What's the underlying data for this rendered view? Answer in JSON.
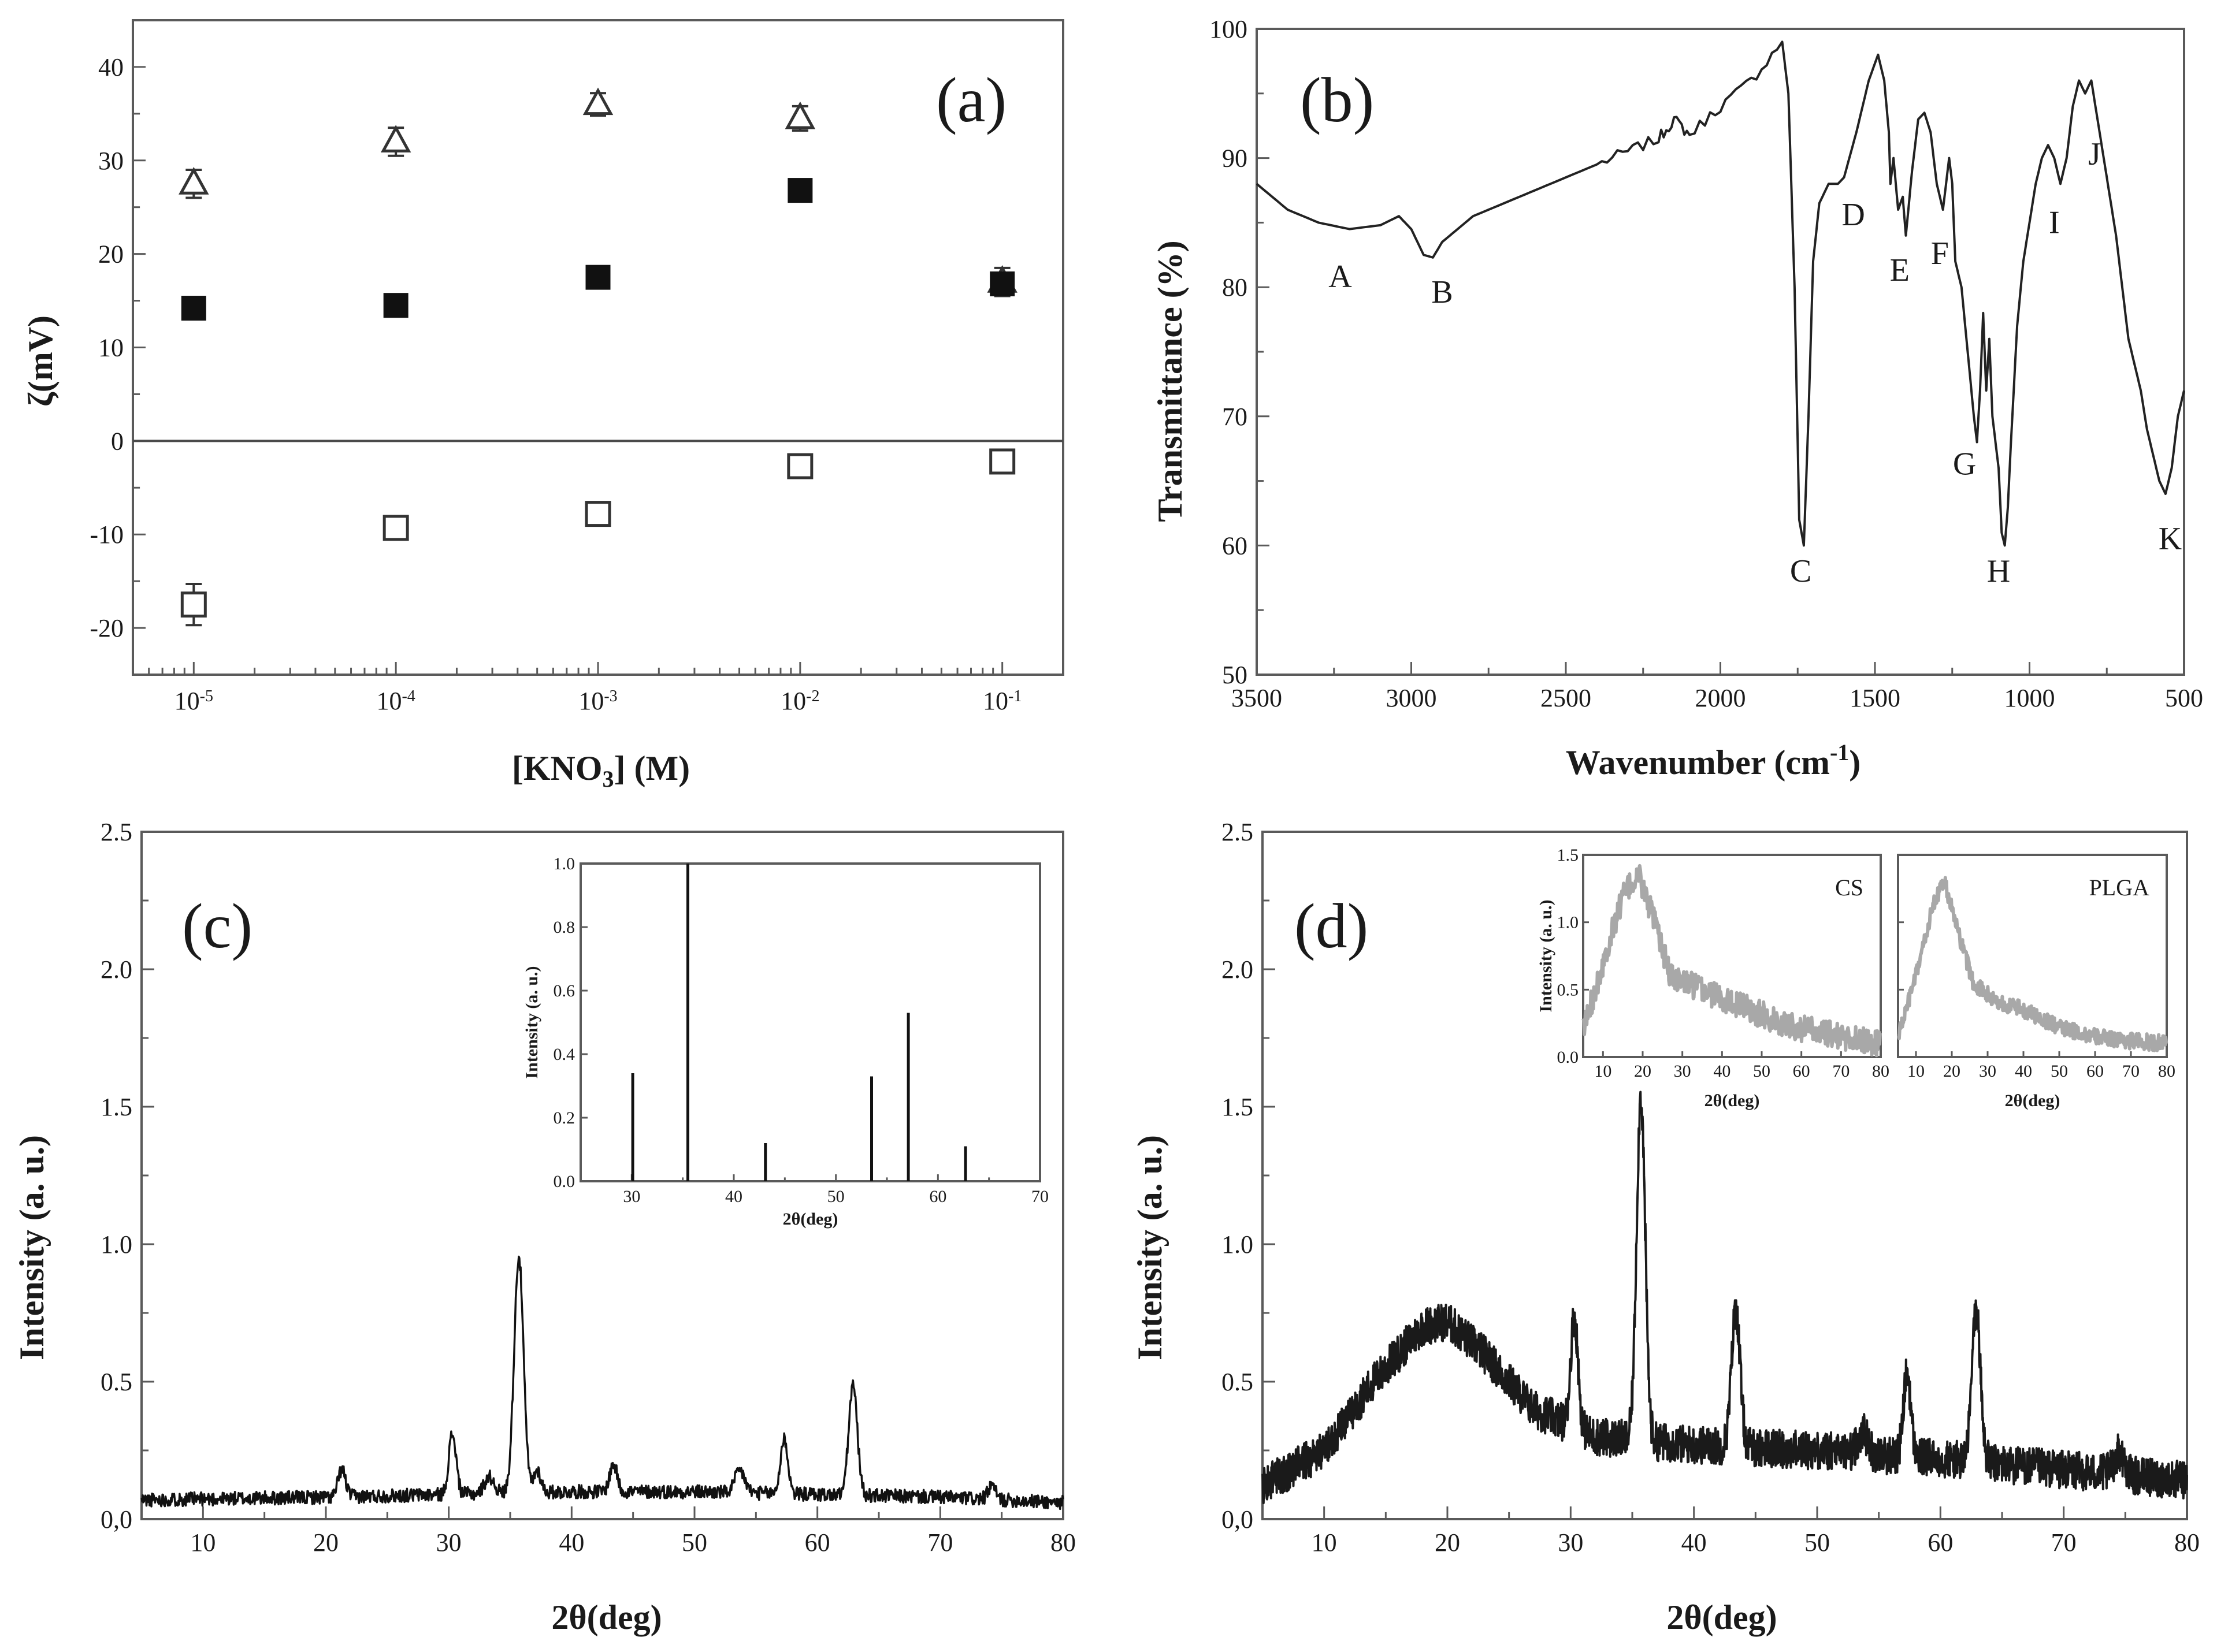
{
  "chart_data": [
    {
      "id": "a",
      "type": "scatter",
      "panel_label": "(a)",
      "xlabel": "[KNO3] (M)",
      "ylabel": "ζ(mV)",
      "x_scale": "log",
      "xlim": [
        5e-06,
        0.2
      ],
      "ylim": [
        -25,
        45
      ],
      "x_ticks": [
        1e-05,
        0.0001,
        0.001,
        0.01,
        0.1
      ],
      "x_tick_labels": [
        "10-5",
        "10-4",
        "10-3",
        "10-2",
        "10-1"
      ],
      "y_ticks": [
        -20,
        -10,
        0,
        10,
        20,
        30,
        40
      ],
      "y_tick_labels": [
        "-20",
        "-10",
        "0",
        "10",
        "20",
        "30",
        "40"
      ],
      "zero_line": true,
      "series": [
        {
          "marker": "open-triangle",
          "x": [
            1e-05,
            0.0001,
            0.001,
            0.01,
            0.1
          ],
          "y": [
            27.5,
            32,
            36,
            34.5,
            17
          ],
          "err": [
            1.5,
            1.5,
            1.2,
            1.3,
            1.5
          ]
        },
        {
          "marker": "filled-square",
          "x": [
            1e-05,
            0.0001,
            0.001,
            0.01,
            0.1
          ],
          "y": [
            14.2,
            14.5,
            17.5,
            26.8,
            16.8
          ],
          "err": [
            0.7,
            0.7,
            0.7,
            0.7,
            0.7
          ]
        },
        {
          "marker": "open-square",
          "x": [
            1e-05,
            0.0001,
            0.001,
            0.01,
            0.1
          ],
          "y": [
            -17.5,
            -9.3,
            -7.8,
            -2.7,
            -2.2
          ],
          "err": [
            2.2,
            1.0,
            1.0,
            0.8,
            0.8
          ]
        }
      ]
    },
    {
      "id": "b",
      "type": "line",
      "panel_label": "(b)",
      "xlabel": "Wavenumber (cm-1)",
      "ylabel": "Transmittance (%)",
      "xlim": [
        3500,
        500
      ],
      "ylim": [
        50,
        100
      ],
      "x_ticks": [
        3500,
        3000,
        2500,
        2000,
        1500,
        1000,
        500
      ],
      "y_ticks": [
        50,
        60,
        70,
        80,
        90,
        100
      ],
      "x": [
        3500,
        3400,
        3300,
        3200,
        3100,
        3040,
        3000,
        2960,
        2930,
        2900,
        2850,
        2800,
        2700,
        2600,
        2500,
        2400,
        2300,
        2200,
        2150,
        2100,
        2000,
        1900,
        1800,
        1780,
        1760,
        1745,
        1730,
        1715,
        1700,
        1680,
        1650,
        1620,
        1600,
        1560,
        1520,
        1490,
        1470,
        1455,
        1450,
        1440,
        1425,
        1410,
        1400,
        1380,
        1360,
        1340,
        1320,
        1300,
        1280,
        1260,
        1250,
        1240,
        1220,
        1200,
        1180,
        1170,
        1160,
        1150,
        1140,
        1130,
        1120,
        1110,
        1100,
        1090,
        1080,
        1070,
        1060,
        1040,
        1020,
        1000,
        980,
        960,
        940,
        920,
        900,
        880,
        860,
        840,
        820,
        800,
        780,
        760,
        740,
        720,
        700,
        680,
        660,
        640,
        620,
        600,
        580,
        560,
        540,
        520,
        500
      ],
      "y": [
        88,
        86,
        85,
        84.5,
        84.8,
        85.5,
        84.5,
        82.5,
        82.3,
        83.5,
        84.5,
        85.5,
        86.5,
        87.5,
        88.5,
        89.5,
        90.5,
        91.5,
        93,
        91.8,
        94,
        96,
        99,
        95,
        80,
        62,
        60,
        70,
        82,
        86.5,
        88,
        88,
        88.5,
        92,
        96,
        98,
        96,
        92,
        88,
        90,
        86,
        87,
        84,
        89,
        93,
        93.5,
        92,
        88,
        86,
        90,
        88,
        82,
        80,
        75,
        70,
        68,
        72,
        78,
        72,
        76,
        70,
        68,
        66,
        61,
        60,
        63,
        68,
        77,
        82,
        85,
        88,
        90,
        91,
        90,
        88,
        90,
        94,
        96,
        95,
        96,
        93,
        90,
        87,
        84,
        80,
        76,
        74,
        72,
        69,
        67,
        65,
        64,
        66,
        70,
        72
      ],
      "annotations": [
        {
          "text": "A",
          "x": 3230,
          "y": 80
        },
        {
          "text": "B",
          "x": 2900,
          "y": 78.8
        },
        {
          "text": "C",
          "x": 1740,
          "y": 57.2
        },
        {
          "text": "D",
          "x": 1570,
          "y": 84.8
        },
        {
          "text": "E",
          "x": 1420,
          "y": 80.5
        },
        {
          "text": "F",
          "x": 1290,
          "y": 81.8
        },
        {
          "text": "G",
          "x": 1210,
          "y": 65.5
        },
        {
          "text": "H",
          "x": 1100,
          "y": 57.2
        },
        {
          "text": "I",
          "x": 920,
          "y": 84.2
        },
        {
          "text": "J",
          "x": 790,
          "y": 89.5
        },
        {
          "text": "K",
          "x": 545,
          "y": 59.7
        }
      ]
    },
    {
      "id": "c",
      "type": "line",
      "panel_label": "(c)",
      "xlabel": "2θ(deg)",
      "ylabel": "Intensity (a. u.)",
      "xlim": [
        5,
        80
      ],
      "ylim": [
        0,
        2.5
      ],
      "x_ticks": [
        10,
        20,
        30,
        40,
        50,
        60,
        70,
        80
      ],
      "y_ticks": [
        0,
        0.5,
        1.0,
        1.5,
        2.0,
        2.5
      ],
      "y_tick_labels": [
        "0,0",
        "0.5",
        "1.0",
        "1.5",
        "2.0",
        "2.5"
      ],
      "baseline": [
        [
          5,
          0.07
        ],
        [
          20,
          0.08
        ],
        [
          30,
          0.09
        ],
        [
          40,
          0.1
        ],
        [
          50,
          0.1
        ],
        [
          60,
          0.09
        ],
        [
          70,
          0.08
        ],
        [
          80,
          0.06
        ]
      ],
      "peaks": [
        [
          21.3,
          0.1,
          0.3
        ],
        [
          30.3,
          0.22,
          0.3
        ],
        [
          33.3,
          0.06,
          0.4
        ],
        [
          35.7,
          0.86,
          0.38
        ],
        [
          37.2,
          0.08,
          0.3
        ],
        [
          43.4,
          0.1,
          0.3
        ],
        [
          53.7,
          0.08,
          0.4
        ],
        [
          57.3,
          0.2,
          0.3
        ],
        [
          62.9,
          0.4,
          0.35
        ],
        [
          74.2,
          0.05,
          0.3
        ]
      ],
      "noise": 0.025,
      "inset": {
        "type": "bar",
        "xlabel": "2θ(deg)",
        "ylabel": "Intensity (a. u.)",
        "xlim": [
          25,
          70
        ],
        "ylim": [
          0,
          1.0
        ],
        "x_ticks": [
          30,
          40,
          50,
          60,
          70
        ],
        "y_ticks": [
          0,
          0.2,
          0.4,
          0.6,
          0.8,
          1.0
        ],
        "y_tick_labels": [
          "0.0",
          "0.2",
          "0.4",
          "0.6",
          "0.8",
          "1.0"
        ],
        "x": [
          30.1,
          35.5,
          43.1,
          53.5,
          57.1,
          62.7
        ],
        "values": [
          0.34,
          1.0,
          0.12,
          0.33,
          0.53,
          0.11
        ]
      }
    },
    {
      "id": "d",
      "type": "line",
      "panel_label": "(d)",
      "xlabel": "2θ(deg)",
      "ylabel": "Intensity (a. u.)",
      "xlim": [
        5,
        80
      ],
      "ylim": [
        0,
        2.5
      ],
      "x_ticks": [
        10,
        20,
        30,
        40,
        50,
        60,
        70,
        80
      ],
      "y_ticks": [
        0,
        0.5,
        1.0,
        1.5,
        2.0,
        2.5
      ],
      "y_tick_labels": [
        "0,0",
        "0.5",
        "1.0",
        "1.5",
        "2.0",
        "2.5"
      ],
      "baseline": [
        [
          5,
          0.12
        ],
        [
          10,
          0.25
        ],
        [
          14,
          0.5
        ],
        [
          18,
          0.7
        ],
        [
          20,
          0.72
        ],
        [
          23,
          0.6
        ],
        [
          27,
          0.4
        ],
        [
          32,
          0.3
        ],
        [
          40,
          0.27
        ],
        [
          50,
          0.25
        ],
        [
          60,
          0.22
        ],
        [
          70,
          0.18
        ],
        [
          80,
          0.14
        ]
      ],
      "peaks": [
        [
          30.3,
          0.4,
          0.3
        ],
        [
          35.7,
          1.25,
          0.35
        ],
        [
          43.4,
          0.5,
          0.35
        ],
        [
          53.7,
          0.08,
          0.4
        ],
        [
          57.3,
          0.3,
          0.3
        ],
        [
          62.9,
          0.55,
          0.35
        ],
        [
          74.5,
          0.08,
          0.4
        ]
      ],
      "noise": 0.07,
      "insets": [
        {
          "label": "CS",
          "xlabel": "2θ(deg)",
          "ylabel": "Intensity (a. u.)",
          "xlim": [
            5,
            80
          ],
          "ylim": [
            0,
            1.5
          ],
          "x_ticks": [
            10,
            20,
            30,
            40,
            50,
            60,
            70,
            80
          ],
          "y_ticks": [
            0,
            0.5,
            1.0,
            1.5
          ],
          "y_tick_labels": [
            "0.0",
            "0.5",
            "1.0",
            "1.5"
          ],
          "baseline": [
            [
              5,
              0.2
            ],
            [
              10,
              0.7
            ],
            [
              15,
              1.2
            ],
            [
              19,
              1.35
            ],
            [
              23,
              1.0
            ],
            [
              27,
              0.6
            ],
            [
              35,
              0.5
            ],
            [
              45,
              0.38
            ],
            [
              55,
              0.25
            ],
            [
              65,
              0.18
            ],
            [
              80,
              0.1
            ]
          ],
          "noise": 0.1
        },
        {
          "label": "PLGA",
          "xlabel": "2θ(deg)",
          "ylabel": "",
          "xlim": [
            5,
            80
          ],
          "ylim": [
            0,
            1.5
          ],
          "x_ticks": [
            10,
            20,
            30,
            40,
            50,
            60,
            70,
            80
          ],
          "y_ticks": [
            0,
            0.5,
            1.0,
            1.5
          ],
          "baseline": [
            [
              5,
              0.15
            ],
            [
              10,
              0.6
            ],
            [
              15,
              1.15
            ],
            [
              18,
              1.3
            ],
            [
              22,
              0.9
            ],
            [
              26,
              0.55
            ],
            [
              32,
              0.42
            ],
            [
              40,
              0.35
            ],
            [
              50,
              0.22
            ],
            [
              60,
              0.15
            ],
            [
              70,
              0.12
            ],
            [
              80,
              0.1
            ]
          ],
          "noise": 0.06
        }
      ]
    }
  ]
}
